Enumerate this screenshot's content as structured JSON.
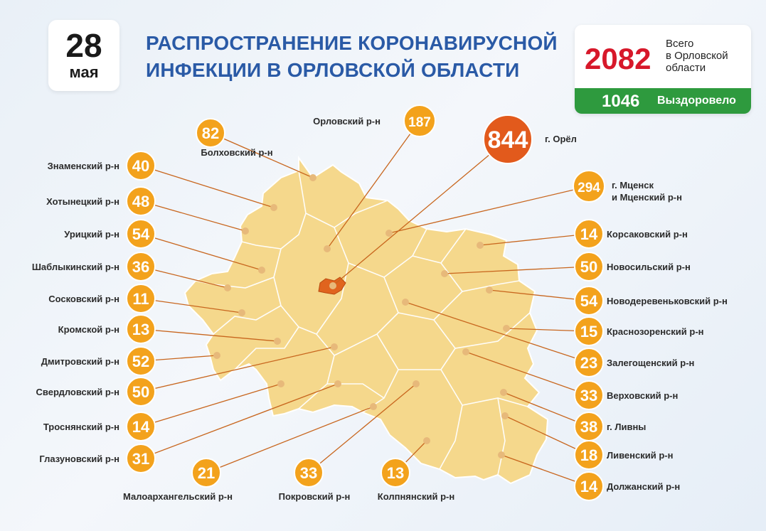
{
  "date": {
    "day": "28",
    "month": "мая"
  },
  "title": {
    "line1": "РАСПРОСТРАНЕНИЕ КОРОНАВИРУСНОЙ",
    "line2": "ИНФЕКЦИИ В ОРЛОВСКОЙ ОБЛАСТИ"
  },
  "totals": {
    "total": "2082",
    "label_line1": "Всего",
    "label_line2": "в Орловской",
    "label_line3": "области",
    "recovered": "1046",
    "recovered_label": "Выздоровело"
  },
  "colors": {
    "region_fill": "#f5d88c",
    "orel_fill": "#e0641e",
    "badge_orange": "#f3a21c",
    "badge_red": "#e25a1c",
    "line": "#c8661e",
    "title_blue": "#2a5aa6",
    "total_red": "#d7182a",
    "recovered_green": "#2e9a3e"
  },
  "districts": [
    {
      "name": "Орловский р-н",
      "value": "187"
    },
    {
      "name": "г. Орёл",
      "value": "844"
    },
    {
      "name": "Болховский р-н",
      "value": "82"
    },
    {
      "name": "Знаменский р-н",
      "value": "40"
    },
    {
      "name": "Хотынецкий р-н",
      "value": "48"
    },
    {
      "name": "Урицкий р-н",
      "value": "54"
    },
    {
      "name": "Шаблыкинский р-н",
      "value": "36"
    },
    {
      "name": "Сосковский р-н",
      "value": "11"
    },
    {
      "name": "Кромской р-н",
      "value": "13"
    },
    {
      "name": "Дмитровский р-н",
      "value": "52"
    },
    {
      "name": "Свердловский р-н",
      "value": "50"
    },
    {
      "name": "Троснянский р-н",
      "value": "14"
    },
    {
      "name": "Глазуновский р-н",
      "value": "31"
    },
    {
      "name": "Малоархангельский р-н",
      "value": "21"
    },
    {
      "name": "Покровский р-н",
      "value": "33"
    },
    {
      "name": "Колпнянский р-н",
      "value": "13"
    },
    {
      "name": "г. Мценск",
      "name_line2": "и Мценский р-н",
      "value": "294"
    },
    {
      "name": "Корсаковский р-н",
      "value": "14"
    },
    {
      "name": "Новосильский р-н",
      "value": "50"
    },
    {
      "name": "Новодеревеньковский р-н",
      "value": "54"
    },
    {
      "name": "Краснозоренский р-н",
      "value": "15"
    },
    {
      "name": "Залегощенский р-н",
      "value": "23"
    },
    {
      "name": "Верховский р-н",
      "value": "33"
    },
    {
      "name": "г. Ливны",
      "value": "38"
    },
    {
      "name": "Ливенский р-н",
      "value": "18"
    },
    {
      "name": "Должанский р-н",
      "value": "14"
    }
  ]
}
